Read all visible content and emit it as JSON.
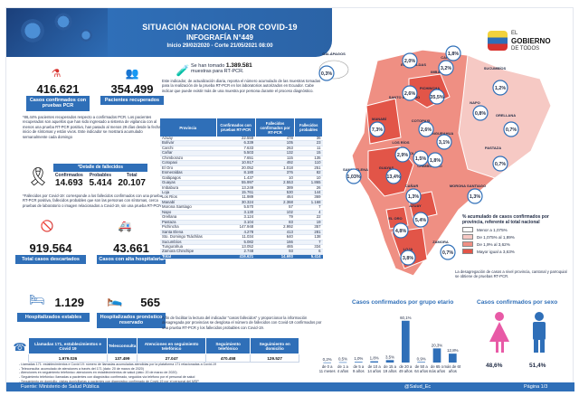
{
  "header": {
    "title": "SITUACIÓN NACIONAL POR COVID-19",
    "subtitle": "INFOGRAFÍA N°449",
    "date_range": "Inicio 29/02/2020 - Corte 21/05/2021 08:00"
  },
  "logo": {
    "line1": "EL",
    "line2": "GOBIERNO",
    "line3": "DE TODOS"
  },
  "left": {
    "confirmed": {
      "value": "416.621",
      "label": "Casos confirmados con pruebas PCR"
    },
    "recovered": {
      "value": "354.499",
      "label": "Pacientes recuperados"
    },
    "recovered_text": "*86,44% pacientes recuperados respecto a confirmados PCR. Los pacientes recuperados son aquellos que han sido ingresado a sistema de vigilancia con al menos una prueba RT-PCR positivo, han pasado al menos 29 días desde la fecha de inicio de síntomas y están vivos. Este indicador se mostrará acumulado semanalmente cada domingo",
    "deaths": {
      "band": "*Detalle de fallecidos",
      "headers": [
        "Confirmados",
        "Probables",
        "Total"
      ],
      "values": [
        "14.693",
        "5.414",
        "20.107"
      ]
    },
    "deaths_text": "*Fallecidos por Covid-19: corresponde a los fallecidos confirmados con una prueba RT-PCR positiva, fallecidos probables que son las personas con síntomas, cerca pruebas de laboratorio o imagen relacionados a Covid-19, sin una prueba RT-PCR",
    "discharged": {
      "value": "919.564",
      "label": "Total casos descartados"
    },
    "hospital_discharge": {
      "value": "43.661",
      "label": "Casos con alta hospitalaria"
    },
    "hosp_stable": {
      "value": "1.129",
      "label": "Hospitalizados estables"
    },
    "hosp_reserved": {
      "value": "565",
      "label": "Hospitalizados pronóstico reservado"
    }
  },
  "tests": {
    "line1": "Se han tomado",
    "number": "1.389.581",
    "line2": "muestras para RT-PCR.",
    "note": "Este indicador, de actualización diaria, reporta el número acumulado de las muestras tomadas para la realización de la prueba RT-PCR en los laboratorios autorizados en Ecuador. Cabe indicar que puede existir más de una muestra por persona durante el proceso diagnóstico."
  },
  "province_table": {
    "headers": [
      "Provincia",
      "Confirmados con pruebas RT-PCR",
      "Fallecidos confirmados por RT-PCR",
      "Fallecidos probables"
    ],
    "rows": [
      [
        "Azuay",
        "22.559",
        "478",
        "36"
      ],
      [
        "Bolívar",
        "6.339",
        "105",
        "23"
      ],
      [
        "Carchi",
        "7.633",
        "263",
        "11"
      ],
      [
        "Cañar",
        "5.503",
        "132",
        "15"
      ],
      [
        "Chimborazo",
        "7.651",
        "115",
        "135"
      ],
      [
        "Cotopaxi",
        "10.917",
        "492",
        "110"
      ],
      [
        "El Oro",
        "20.052",
        "1.018",
        "251"
      ],
      [
        "Esmeraldas",
        "8.180",
        "376",
        "82"
      ],
      [
        "Galápagos",
        "1.437",
        "10",
        "10"
      ],
      [
        "Guayas",
        "55.997",
        "2.553",
        "1.865"
      ],
      [
        "Imbabura",
        "13.249",
        "389",
        "26"
      ],
      [
        "Loja",
        "15.761",
        "530",
        "144"
      ],
      [
        "Los Ríos",
        "11.989",
        "464",
        "369"
      ],
      [
        "Manabí",
        "30.324",
        "2.368",
        "1.168"
      ],
      [
        "Morona Santiago",
        "5.570",
        "57",
        "7"
      ],
      [
        "Napo",
        "3.130",
        "102",
        "4"
      ],
      [
        "Orellana",
        "3.124",
        "79",
        "22"
      ],
      [
        "Pastaza",
        "3.104",
        "83",
        "19"
      ],
      [
        "Pichincha",
        "147.948",
        "2.992",
        "357"
      ],
      [
        "Santa Elena",
        "4.278",
        "413",
        "281"
      ],
      [
        "Sto. Domingo Tsáchilas",
        "11.034",
        "640",
        "138"
      ],
      [
        "Sucumbíos",
        "5.082",
        "166",
        "7"
      ],
      [
        "Tungurahua",
        "13.052",
        "465",
        "334"
      ],
      [
        "Zamora Chinchipe",
        "2.748",
        "93",
        "6"
      ]
    ],
    "total": [
      "Total",
      "416.621",
      "14.693",
      "5.414"
    ]
  },
  "footnote_mid": "A fin de facilitar la lectura del indicador \"casos fallecidos\" y proporcionar la información desagregada por provincias se desglosa el número de fallecidos con Covid-19 confirmados por una prueba RT-PCR y los fallecidos probables con Covid-19.",
  "map": {
    "labels": [
      {
        "t": "GALÁPAGOS"
      },
      {
        "t": "ESMERALDAS"
      },
      {
        "t": "CARCHI"
      },
      {
        "t": "IMBABURA"
      },
      {
        "t": "SUCUMBÍOS"
      },
      {
        "t": "PICHINCHA"
      },
      {
        "t": "SANTO DOMINGO"
      },
      {
        "t": "NAPO"
      },
      {
        "t": "ORELLANA"
      },
      {
        "t": "MANABÍ"
      },
      {
        "t": "COTOPAXI"
      },
      {
        "t": "TUNGURAHUA"
      },
      {
        "t": "LOS RÍOS"
      },
      {
        "t": "BOLÍVAR"
      },
      {
        "t": "PASTAZA"
      },
      {
        "t": "SANTA ELENA"
      },
      {
        "t": "GUAYAS"
      },
      {
        "t": "CHIMBORAZO"
      },
      {
        "t": "MORONA SANTIAGO"
      },
      {
        "t": "CAÑAR"
      },
      {
        "t": "AZUAY"
      },
      {
        "t": "EL ORO"
      },
      {
        "t": "LOJA"
      },
      {
        "t": "ZAMORA"
      }
    ],
    "percents": [
      "0,3%",
      "2,0%",
      "1,8%",
      "3,2%",
      "1,2%",
      "35,5%",
      "2,6%",
      "0,8%",
      "0,7%",
      "7,3%",
      "2,6%",
      "3,1%",
      "2,9%",
      "1,5%",
      "0,7%",
      "1,03%",
      "13,4%",
      "1,8%",
      "1,3%",
      "1,3%",
      "5,4%",
      "4,8%",
      "3,8%",
      "0,7%"
    ]
  },
  "legend": {
    "title": "% acumulado de casos confirmados por provincia, referente al total nacional",
    "items": [
      "Menor a 1,075%",
      "De 1,075% al 1,89%",
      "De 1,9% al 3,62%",
      "Mayor igual a 3,63%"
    ],
    "colors": [
      "#ffffff",
      "#f6c9c4",
      "#ef8f83",
      "#e25548"
    ]
  },
  "map_note": "La desagregación de casos a nivel provincia, cantonal y parroquial se obtiene de pruebas RT-PCR.",
  "age_chart": {
    "title": "Casos confirmados por grupo etario",
    "categories": [
      "de 0 a 11 meses",
      "de 1 a 4 años",
      "de 5 a 9 años",
      "de 10 a 14 años",
      "de 15 a 19 años",
      "de 20 a 49 años",
      "de 50 a 64 años",
      "de 65 o más años",
      "más de 65 años"
    ],
    "values": [
      0.2,
      0.5,
      1.0,
      1.8,
      3.5,
      60.1,
      0.9,
      20.3,
      12.8
    ],
    "labels": [
      "0,2%",
      "0,5%",
      "1,0%",
      "1,8%",
      "3,5%",
      "60,1%",
      "0,9%",
      "20,3%",
      "12,8%"
    ]
  },
  "sex_chart": {
    "title": "Casos confirmados por sexo",
    "female": "48,6%",
    "male": "51,4%",
    "female_color": "#e85aa6",
    "male_color": "#2f6fb8"
  },
  "bottom_table": {
    "headers": [
      "Llamadas 171, establecimientos e Covid 19",
      "Telesconsulta",
      "Atenciones en seguimiento telefónico",
      "Seguimiento telefónico",
      "Seguimiento en domicilio"
    ],
    "values": [
      "1.979.026",
      "137.499",
      "27.047",
      "470.458",
      "129.527"
    ]
  },
  "bottom_notes": [
    "- Llamadas 171: establecimientos e Covid 19: número de llamadas acumuladas atendidas por la plataforma 171 relacionadas a Covid-19",
    "- Teleconsulta: acumulado de atenciones a través del 171 (dato: 20 de marzo de 2020)",
    "- Atenciones en seguimiento telefónico: atenciones en establecimientos de salud (dato: 20 de marzo de 2020)",
    "- Seguimiento telefónico: llamadas a pacientes con diagnóstico confirmado, seguidos vía teléfono por el personal de salud",
    "- Seguimiento en domicilio: visitas domiciliarias a pacientes con diagnóstico confirmado de Covid-19 por el personal del MSP"
  ],
  "footer": {
    "source": "Fuente: Ministerio de Salud Pública",
    "social": "@Salud_Ec",
    "page": "Página 1/3"
  }
}
